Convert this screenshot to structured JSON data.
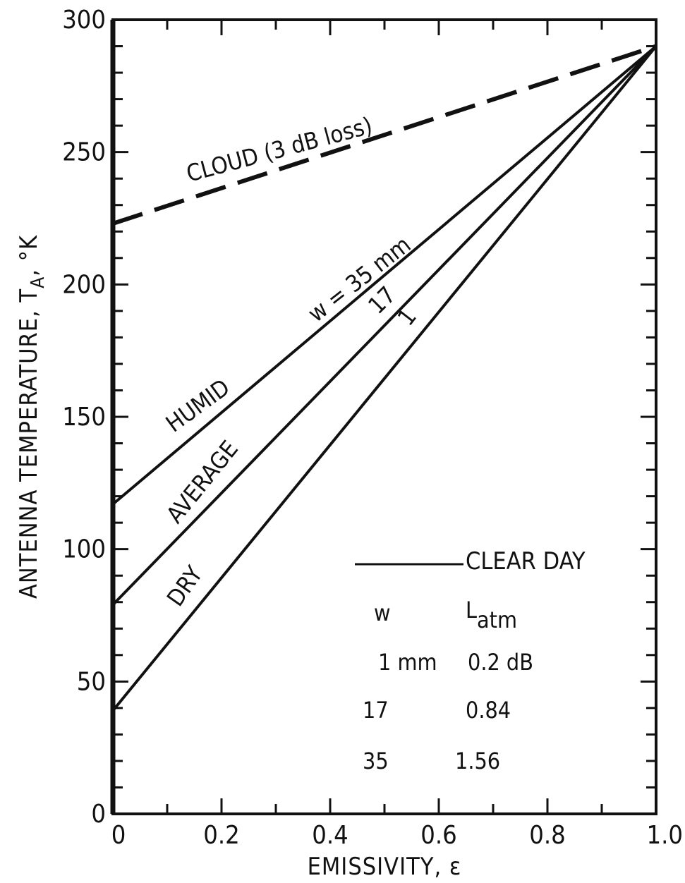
{
  "chart_data": {
    "type": "line",
    "title": "",
    "xlabel": "EMISSIVITY, ε",
    "ylabel": {
      "main": "ANTENNA TEMPERATURE, T",
      "subscript": "A",
      "unit": ", °K"
    },
    "xlim": [
      0,
      1.0
    ],
    "ylim": [
      0,
      300
    ],
    "xticks": [
      0,
      0.2,
      0.4,
      0.6,
      0.8,
      1.0
    ],
    "xtick_labels": [
      "0",
      "0.2",
      "0.4",
      "0.6",
      "0.8",
      "1.0"
    ],
    "yticks": [
      0,
      50,
      100,
      150,
      200,
      250,
      300
    ],
    "ytick_labels": [
      "0",
      "50",
      "100",
      "150",
      "200",
      "250",
      "300"
    ],
    "grid": false,
    "series": [
      {
        "name": "CLOUD (3 dB loss)",
        "style": "dashed",
        "x": [
          0,
          1.0
        ],
        "y": [
          223,
          290
        ]
      },
      {
        "name": "HUMID",
        "style": "solid",
        "x": [
          0,
          1.0
        ],
        "y": [
          117,
          290
        ]
      },
      {
        "name": "AVERAGE",
        "style": "solid",
        "x": [
          0,
          1.0
        ],
        "y": [
          79,
          290
        ]
      },
      {
        "name": "DRY",
        "style": "solid",
        "x": [
          0,
          1.0
        ],
        "y": [
          39,
          290
        ]
      }
    ],
    "annotations": {
      "w35": "w = 35 mm",
      "w17": "17",
      "w1": "1"
    },
    "legend": {
      "label": "CLEAR DAY",
      "placement": "lower-right",
      "table_header_w": "w",
      "table_header_l_main": "L",
      "table_header_l_sub": "atm",
      "rows": [
        {
          "w": "1 mm",
          "l": "0.2 dB"
        },
        {
          "w": "17",
          "l": "0.84"
        },
        {
          "w": "35",
          "l": "1.56"
        }
      ]
    }
  }
}
